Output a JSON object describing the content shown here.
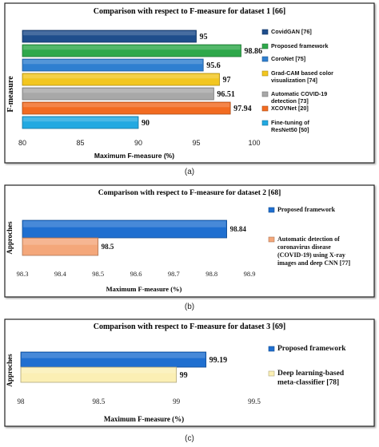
{
  "chart_data": [
    {
      "type": "bar",
      "orientation": "horizontal",
      "title": "Comparison with respect to F-measure for dataset 1 [66]",
      "xlabel": "Maximum F-measure (%)",
      "ylabel": "F-measure",
      "xlim": [
        80,
        100
      ],
      "xticks": [
        "80",
        "85",
        "90",
        "95",
        "100"
      ],
      "categories": [
        "CovidGAN [76]",
        "Proposed framework",
        "CoroNet [75]",
        "Grad-CAM based color visualization [74]",
        "Automatic COVID-19 detection [73]",
        "XCOVNet [20]",
        "Fine-tuning of ResNet50 [50]"
      ],
      "values": [
        95,
        98.86,
        95.6,
        97,
        96.51,
        97.94,
        90
      ],
      "value_labels": [
        "95",
        "98.86",
        "95.6",
        "97",
        "96.51",
        "97.94",
        "90"
      ],
      "legend": [
        "CovidGAN [76]",
        "Proposed framework",
        "CoroNet [75]",
        "Grad-CAM based color visualization [74]",
        "Automatic COVID-19 detection [73]",
        "XCOVNet [20]",
        "Fine-tuning of ResNet50 [50]"
      ],
      "legend_position": "right",
      "colors": [
        "#1f4e8c",
        "#2ea84a",
        "#2f7fd0",
        "#f2c61f",
        "#a8a8a8",
        "#f26b21",
        "#22a9e1"
      ],
      "caption": "(a)"
    },
    {
      "type": "bar",
      "orientation": "horizontal",
      "title": "Comparison with respect to F-measure for dataset 2 [68]",
      "xlabel": "Maximum F-measure (%)",
      "ylabel": "Approches",
      "xlim": [
        98.3,
        98.9
      ],
      "xticks": [
        "98.3",
        "98.4",
        "98.5",
        "98.6",
        "98.7",
        "98.8",
        "98.9"
      ],
      "categories": [
        "Proposed framework",
        "Automatic detection of coronavirus disease (COVID-19) using X-ray images and deep CNN [77]"
      ],
      "values": [
        98.84,
        98.5
      ],
      "value_labels": [
        "98.84",
        "98.5"
      ],
      "legend": [
        "Proposed framework",
        "Automatic detection of coronavirus disease (COVID-19) using X-ray images and deep CNN [77]"
      ],
      "legend_position": "right",
      "colors": [
        "#1f6fd0",
        "#f4a77a"
      ],
      "caption": "(b)"
    },
    {
      "type": "bar",
      "orientation": "horizontal",
      "title": "Comparison with respect to F-measure for dataset 3 [69]",
      "xlabel": "Maximum F-measure (%)",
      "ylabel": "Approches",
      "xlim": [
        98,
        99.5
      ],
      "xticks": [
        "98",
        "98.5",
        "99",
        "99.5"
      ],
      "categories": [
        "Proposed framework",
        "Deep learning-based meta-classifier [78]"
      ],
      "values": [
        99.19,
        99
      ],
      "value_labels": [
        "99.19",
        "99"
      ],
      "legend": [
        "Proposed framework",
        "Deep learning-based meta-classifier [78]"
      ],
      "legend_position": "right",
      "colors": [
        "#1f6fd0",
        "#fbefb4"
      ],
      "caption": "(c)"
    }
  ]
}
